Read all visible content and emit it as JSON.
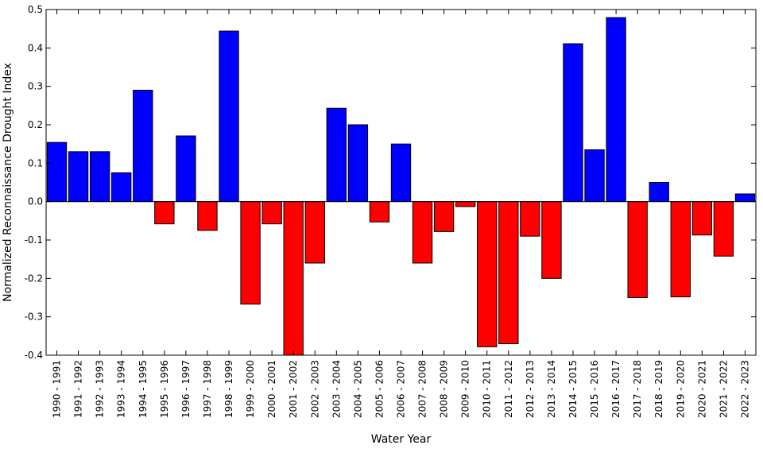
{
  "chart_data": {
    "type": "bar",
    "title": "",
    "xlabel": "Water Year",
    "ylabel": "Normalized Reconnaissance Drought Index",
    "ylim": [
      -0.4,
      0.5
    ],
    "yticks": [
      "0.5",
      "0.4",
      "0.3",
      "0.2",
      "0.1",
      "0.0",
      "-0.1",
      "-0.2",
      "-0.3",
      "-0.4"
    ],
    "ytick_values": [
      0.5,
      0.4,
      0.3,
      0.2,
      0.1,
      0.0,
      -0.1,
      -0.2,
      -0.3,
      -0.4
    ],
    "grid": false,
    "colors": {
      "positive": "#0000ff",
      "negative": "#ff0000",
      "edge": "#000000"
    },
    "categories": [
      "1990 - 1991",
      "1991 - 1992",
      "1992 - 1993",
      "1993 - 1994",
      "1994 - 1995",
      "1995 - 1996",
      "1996 - 1997",
      "1997 - 1998",
      "1998 - 1999",
      "1999 - 2000",
      "2000 - 2001",
      "2001 - 2002",
      "2002 - 2003",
      "2003 - 2004",
      "2004 - 2005",
      "2005 - 2006",
      "2006 - 2007",
      "2007 - 2008",
      "2008 - 2009",
      "2009 - 2010",
      "2010 - 2011",
      "2011 - 2012",
      "2012 - 2013",
      "2013 - 2014",
      "2014 - 2015",
      "2015 - 2016",
      "2016 - 2017",
      "2017 - 2018",
      "2018 - 2019",
      "2019 - 2020",
      "2020 - 2021",
      "2021 - 2022",
      "2022 - 2023"
    ],
    "values": [
      0.154,
      0.13,
      0.13,
      0.075,
      0.29,
      -0.058,
      0.171,
      -0.075,
      0.444,
      -0.267,
      -0.058,
      -0.4,
      -0.16,
      0.243,
      0.2,
      -0.053,
      0.15,
      -0.16,
      -0.078,
      -0.013,
      -0.378,
      -0.37,
      -0.09,
      -0.2,
      0.411,
      0.135,
      0.479,
      -0.25,
      0.05,
      -0.248,
      -0.087,
      -0.142,
      0.02
    ]
  }
}
